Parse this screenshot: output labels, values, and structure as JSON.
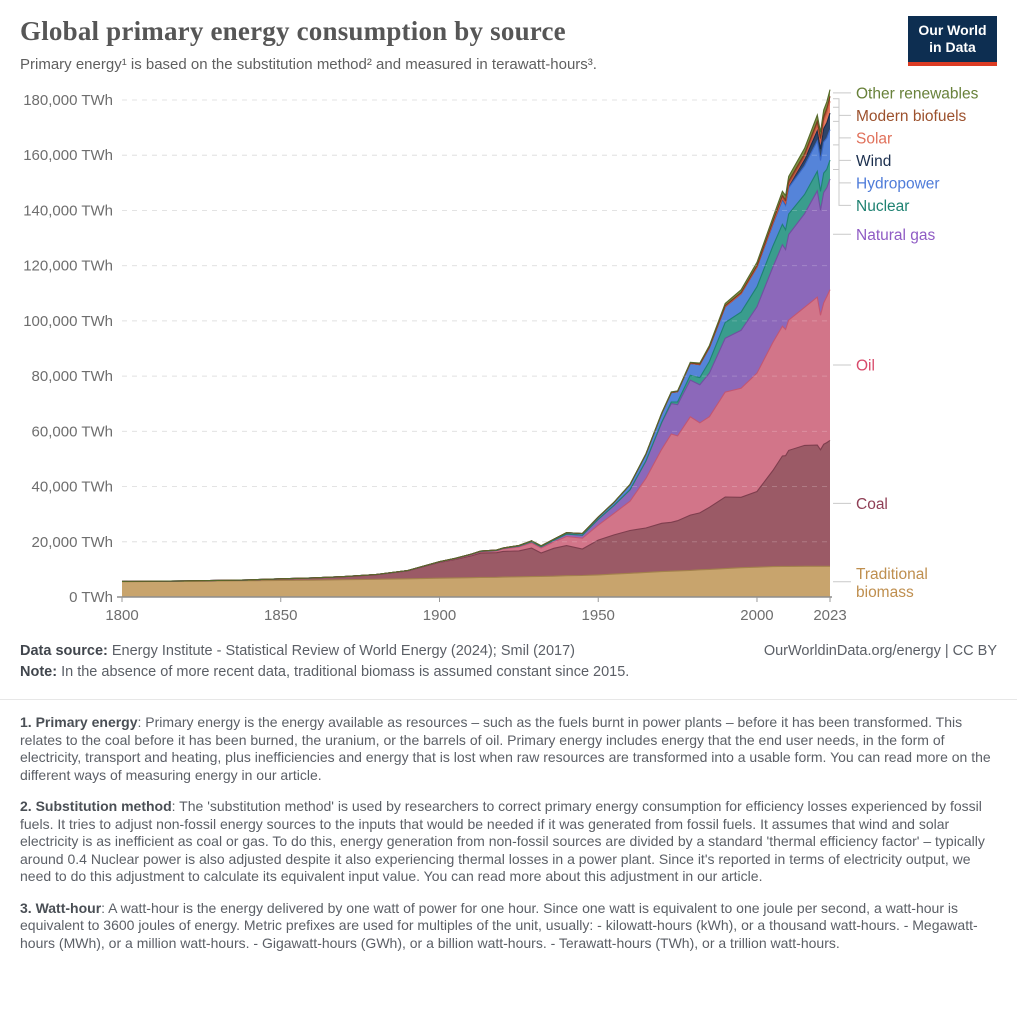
{
  "header": {
    "title": "Global primary energy consumption by source",
    "subtitle": "Primary energy¹ is based on the substitution method² and measured in terawatt-hours³.",
    "logo_line1": "Our World",
    "logo_line2": "in Data",
    "logo_bg": "#0d2e51",
    "logo_accent": "#dc3b23"
  },
  "footer": {
    "datasource_label": "Data source:",
    "datasource": "Energy Institute - Statistical Review of World Energy (2024); Smil (2017)",
    "attribution": "OurWorldinData.org/energy | CC BY",
    "note_label": "Note:",
    "note": "In the absence of more recent data, traditional biomass is assumed constant since 2015."
  },
  "footnotes": [
    {
      "lead": "1. Primary energy",
      "body": ": Primary energy is the energy available as resources – such as the fuels burnt in power plants – before it has been transformed. This relates to the coal before it has been burned, the uranium, or the barrels of oil. Primary energy includes energy that the end user needs, in the form of electricity, transport and heating, plus inefficiencies and energy that is lost when raw resources are transformed into a usable form. You can read more on the different ways of measuring energy in our article."
    },
    {
      "lead": "2. Substitution method",
      "body": ": The 'substitution method' is used by researchers to correct primary energy consumption for efficiency losses experienced by fossil fuels. It tries to adjust non-fossil energy sources to the inputs that would be needed if it was generated from fossil fuels. It assumes that wind and solar electricity is as inefficient as coal or gas. To do this, energy generation from non-fossil sources are divided by a standard 'thermal efficiency factor' – typically around 0.4 Nuclear power is also adjusted despite it also experiencing thermal losses in a power plant. Since it's reported in terms of electricity output, we need to do this adjustment to calculate its equivalent input value. You can read more about this adjustment in our article."
    },
    {
      "lead": "3. Watt-hour",
      "body": ": A watt-hour is the energy delivered by one watt of power for one hour. Since one watt is equivalent to one joule per second, a watt-hour is equivalent to 3600 joules of energy. Metric prefixes are used for multiples of the unit, usually: - kilowatt-hours (kWh), or a thousand watt-hours. - Megawatt-hours (MWh), or a million watt-hours. - Gigawatt-hours (GWh), or a billion watt-hours. - Terawatt-hours (TWh), or a trillion watt-hours."
    }
  ],
  "chart_data": {
    "type": "area",
    "stacked": true,
    "title": "Global primary energy consumption by source",
    "unit": "TWh",
    "xlabel": "",
    "ylabel": "TWh",
    "ylim": [
      0,
      180000
    ],
    "grid": "dashed-horizontal",
    "legend_position": "right",
    "yticks": [
      0,
      20000,
      40000,
      60000,
      80000,
      100000,
      120000,
      140000,
      160000,
      180000
    ],
    "xticks": [
      1800,
      1850,
      1900,
      1950,
      2000,
      2023
    ],
    "x": [
      1800,
      1810,
      1820,
      1830,
      1840,
      1850,
      1860,
      1870,
      1880,
      1890,
      1900,
      1905,
      1910,
      1913,
      1918,
      1920,
      1925,
      1929,
      1932,
      1936,
      1940,
      1945,
      1950,
      1955,
      1960,
      1965,
      1970,
      1973,
      1975,
      1979,
      1982,
      1985,
      1990,
      1995,
      2000,
      2005,
      2008,
      2009,
      2010,
      2015,
      2019,
      2020,
      2021,
      2022,
      2023
    ],
    "series": [
      {
        "name": "Traditional biomass",
        "label_lines": [
          "Traditional",
          "biomass"
        ],
        "color": "#c8a46d",
        "edge": "#a3814c",
        "label_color": "#bf8f4f",
        "values": [
          5556,
          5600,
          5700,
          5800,
          5900,
          6000,
          6100,
          6250,
          6400,
          6600,
          6800,
          6900,
          7000,
          7100,
          7150,
          7200,
          7300,
          7400,
          7450,
          7550,
          7700,
          7800,
          8000,
          8300,
          8600,
          8900,
          9200,
          9350,
          9450,
          9650,
          9850,
          10000,
          10300,
          10600,
          10800,
          11000,
          11080,
          11090,
          11100,
          11111,
          11111,
          11111,
          11111,
          11111,
          11111
        ]
      },
      {
        "name": "Coal",
        "color": "#9b5a66",
        "edge": "#7e3e4e",
        "label_color": "#8f3f56",
        "values": [
          97,
          110,
          140,
          200,
          280,
          570,
          800,
          1100,
          1650,
          2800,
          5730,
          6700,
          7900,
          8800,
          8900,
          9300,
          9400,
          10300,
          8500,
          10100,
          10900,
          9600,
          12600,
          14200,
          15500,
          16100,
          17500,
          17700,
          18200,
          20000,
          20600,
          22500,
          25900,
          25500,
          27400,
          34800,
          40000,
          40100,
          42000,
          43800,
          43900,
          42200,
          44200,
          44800,
          45600
        ]
      },
      {
        "name": "Oil",
        "color": "#d27589",
        "edge": "#c25672",
        "label_color": "#d84a6b",
        "values": [
          0,
          0,
          0,
          0,
          0,
          5,
          10,
          47,
          85,
          130,
          180,
          250,
          380,
          480,
          630,
          890,
          1400,
          1900,
          1800,
          2300,
          3300,
          3900,
          5400,
          7800,
          10600,
          17900,
          26800,
          32000,
          30700,
          35600,
          32600,
          32800,
          38000,
          39500,
          42900,
          46400,
          47000,
          45700,
          47200,
          50000,
          53600,
          48700,
          51200,
          52900,
          54600
        ]
      },
      {
        "name": "Natural gas",
        "color": "#8c68ba",
        "edge": "#7050a0",
        "label_color": "#8f5bc4",
        "values": [
          0,
          0,
          0,
          0,
          0,
          0,
          0,
          5,
          15,
          35,
          64,
          90,
          140,
          170,
          200,
          230,
          330,
          480,
          450,
          600,
          880,
          1100,
          2100,
          2900,
          4100,
          6300,
          9600,
          11000,
          11300,
          13300,
          13800,
          15800,
          19500,
          21000,
          24000,
          27300,
          29500,
          28900,
          31000,
          33900,
          38500,
          38100,
          40000,
          39400,
          40100
        ]
      },
      {
        "name": "Nuclear",
        "color": "#3a9d8d",
        "edge": "#1e8273",
        "label_color": "#1f8272",
        "values": [
          0,
          0,
          0,
          0,
          0,
          0,
          0,
          0,
          0,
          0,
          0,
          0,
          0,
          0,
          0,
          0,
          0,
          0,
          0,
          0,
          0,
          0,
          0,
          5,
          20,
          72,
          224,
          580,
          1000,
          1750,
          2600,
          4200,
          5700,
          6600,
          7300,
          7600,
          7400,
          7200,
          7400,
          6970,
          7070,
          6790,
          7030,
          6700,
          6820
        ]
      },
      {
        "name": "Hydropower",
        "color": "#5584d9",
        "edge": "#3a68c8",
        "label_color": "#4f7cd9",
        "values": [
          0,
          0,
          0,
          0,
          0,
          0,
          0,
          2,
          8,
          20,
          44,
          70,
          100,
          120,
          130,
          140,
          210,
          280,
          300,
          400,
          500,
          600,
          810,
          1130,
          1900,
          2480,
          3100,
          3400,
          3700,
          4300,
          4700,
          5000,
          5700,
          6600,
          7000,
          7900,
          8700,
          8800,
          9500,
          10400,
          11000,
          11200,
          11200,
          11300,
          11000
        ]
      },
      {
        "name": "Wind",
        "color": "#2d4468",
        "edge": "#1a2c49",
        "label_color": "#1b2f4e",
        "values": [
          0,
          0,
          0,
          0,
          0,
          0,
          0,
          0,
          0,
          0,
          0,
          0,
          0,
          0,
          0,
          0,
          0,
          0,
          0,
          0,
          0,
          0,
          0,
          0,
          0,
          0,
          0,
          0,
          0,
          0,
          0,
          1,
          10,
          21,
          93,
          280,
          580,
          730,
          900,
          2200,
          3700,
          4150,
          4870,
          5490,
          6040
        ]
      },
      {
        "name": "Solar",
        "color": "#e4765c",
        "edge": "#cf5a44",
        "label_color": "#e0705a",
        "values": [
          0,
          0,
          0,
          0,
          0,
          0,
          0,
          0,
          0,
          0,
          0,
          0,
          0,
          0,
          0,
          0,
          0,
          0,
          0,
          0,
          0,
          0,
          0,
          0,
          0,
          0,
          0,
          0,
          0,
          0,
          0,
          0,
          0,
          1,
          3,
          11,
          32,
          55,
          86,
          670,
          1850,
          2200,
          2700,
          3450,
          4260
        ]
      },
      {
        "name": "Modern biofuels",
        "color": "#9c5030",
        "edge": "#7a3a1e",
        "label_color": "#9c512d",
        "values": [
          0,
          0,
          0,
          0,
          0,
          0,
          0,
          0,
          0,
          0,
          0,
          0,
          0,
          0,
          0,
          0,
          0,
          0,
          0,
          0,
          0,
          0,
          0,
          0,
          0,
          0,
          100,
          110,
          120,
          150,
          200,
          280,
          390,
          430,
          510,
          710,
          1100,
          1200,
          1450,
          1450,
          1600,
          1600,
          1700,
          1750,
          1800
        ]
      },
      {
        "name": "Other renewables",
        "color": "#7a9141",
        "edge": "#55682a",
        "label_color": "#68813a",
        "values": [
          0,
          0,
          0,
          0,
          0,
          0,
          0,
          0,
          0,
          0,
          0,
          0,
          0,
          0,
          0,
          0,
          0,
          0,
          0,
          0,
          0,
          0,
          20,
          35,
          50,
          80,
          120,
          150,
          180,
          250,
          350,
          500,
          800,
          1000,
          1200,
          1400,
          1550,
          1600,
          1700,
          2000,
          2250,
          2300,
          2350,
          2400,
          2450
        ]
      }
    ]
  }
}
